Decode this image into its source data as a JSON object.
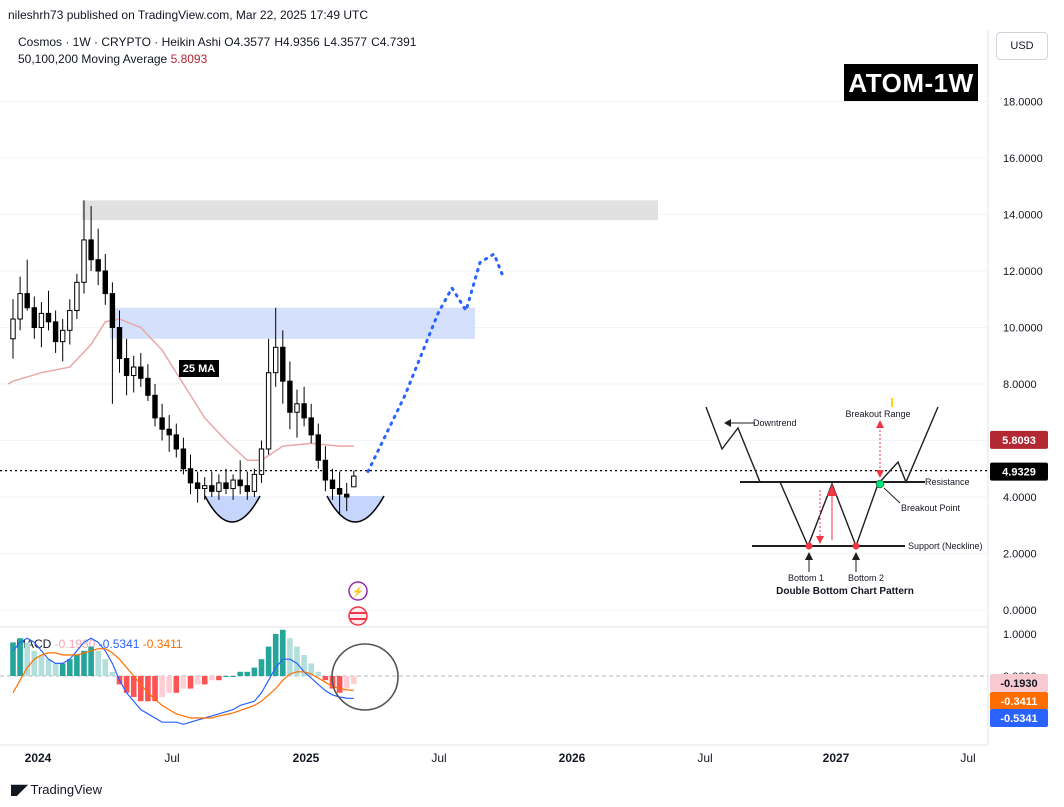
{
  "publisher": "nileshrh73 published on TradingView.com, Mar 22, 2025 17:49 UTC",
  "legend": {
    "symbol": "Cosmos · 1W · CRYPTO · Heikin Ashi",
    "open": "O4.3577",
    "high": "H4.9356",
    "low": "L4.3577",
    "close": "C4.7391",
    "ma_label": "50,100,200 Moving Average",
    "ma_value": "5.8093"
  },
  "currency_button": "USD",
  "badge": "ATOM-1W",
  "annotations": {
    "ma_label": "25 MA"
  },
  "price_axis": {
    "ticks": [
      "18.0000",
      "16.0000",
      "14.0000",
      "12.0000",
      "10.0000",
      "8.0000",
      "6.0000",
      "4.0000",
      "2.0000",
      "0.0000"
    ],
    "ma_tag": "5.8093",
    "price_tag": "4.9329",
    "ma_tag_color": "#b22833",
    "price_tag_color": "#000000"
  },
  "macd_axis": {
    "ticks": [
      "1.0000",
      "0.0000"
    ],
    "tags": [
      {
        "value": "-0.1930",
        "bg": "#f8c9d0",
        "fg": "#131722"
      },
      {
        "value": "-0.3411",
        "bg": "#ff6d00",
        "fg": "#ffffff"
      },
      {
        "value": "-0.5341",
        "bg": "#2962ff",
        "fg": "#ffffff"
      }
    ]
  },
  "macd_legend": {
    "title": "MACD",
    "hist": "-0.1930",
    "macd": "-0.5341",
    "signal": "-0.3411"
  },
  "time_axis": [
    "2024",
    "Jul",
    "2025",
    "Jul",
    "2026",
    "Jul",
    "2027",
    "Jul"
  ],
  "pattern": {
    "downtrend": "Downtrend",
    "breakout_range": "Breakout Range",
    "resistance": "Resistance",
    "breakout_point": "Breakout Point",
    "support": "Support (Neckline)",
    "bottom1": "Bottom 1",
    "bottom2": "Bottom 2",
    "title": "Double Bottom Chart Pattern"
  },
  "footer": {
    "brand": "TradingView"
  },
  "colors": {
    "bull": "#000000",
    "bear": "#000000",
    "ma": "#e8a8a8",
    "projection": "#2962ff",
    "resistance_zone": "#c5d5fb",
    "top_zone": "#d9d9d9",
    "macd_line": "#2962ff",
    "signal_line": "#ff6d00",
    "hist_pos_strong": "#26a69a",
    "hist_pos_weak": "#b2dfdb",
    "hist_neg_strong": "#ff5252",
    "hist_neg_weak": "#ffcdd2"
  },
  "chart_data": {
    "type": "candlestick",
    "symbol": "ATOM",
    "timeframe": "1W",
    "yaxis": {
      "range": [
        0,
        19
      ]
    },
    "candles": [
      {
        "o": 9.6,
        "h": 11.0,
        "l": 8.9,
        "c": 10.3
      },
      {
        "o": 10.3,
        "h": 11.8,
        "l": 9.9,
        "c": 11.2
      },
      {
        "o": 11.2,
        "h": 12.4,
        "l": 10.6,
        "c": 10.7
      },
      {
        "o": 10.7,
        "h": 11.1,
        "l": 9.6,
        "c": 10.0
      },
      {
        "o": 10.0,
        "h": 10.9,
        "l": 9.3,
        "c": 10.5
      },
      {
        "o": 10.5,
        "h": 11.3,
        "l": 9.9,
        "c": 10.2
      },
      {
        "o": 10.2,
        "h": 10.6,
        "l": 9.1,
        "c": 9.5
      },
      {
        "o": 9.5,
        "h": 10.3,
        "l": 8.8,
        "c": 9.9
      },
      {
        "o": 9.9,
        "h": 11.0,
        "l": 9.4,
        "c": 10.6
      },
      {
        "o": 10.6,
        "h": 11.9,
        "l": 10.3,
        "c": 11.6
      },
      {
        "o": 11.6,
        "h": 14.5,
        "l": 11.2,
        "c": 13.1
      },
      {
        "o": 13.1,
        "h": 14.3,
        "l": 12.0,
        "c": 12.4
      },
      {
        "o": 12.4,
        "h": 13.5,
        "l": 11.5,
        "c": 12.0
      },
      {
        "o": 12.0,
        "h": 12.6,
        "l": 10.8,
        "c": 11.2
      },
      {
        "o": 11.2,
        "h": 11.6,
        "l": 7.3,
        "c": 10.0
      },
      {
        "o": 10.0,
        "h": 10.6,
        "l": 8.4,
        "c": 8.9
      },
      {
        "o": 8.9,
        "h": 9.6,
        "l": 7.6,
        "c": 8.3
      },
      {
        "o": 8.3,
        "h": 9.0,
        "l": 7.7,
        "c": 8.6
      },
      {
        "o": 8.6,
        "h": 9.1,
        "l": 7.9,
        "c": 8.2
      },
      {
        "o": 8.2,
        "h": 8.7,
        "l": 7.4,
        "c": 7.6
      },
      {
        "o": 7.6,
        "h": 8.0,
        "l": 6.5,
        "c": 6.8
      },
      {
        "o": 6.8,
        "h": 7.3,
        "l": 6.0,
        "c": 6.4
      },
      {
        "o": 6.4,
        "h": 6.9,
        "l": 5.6,
        "c": 6.2
      },
      {
        "o": 6.2,
        "h": 6.6,
        "l": 5.4,
        "c": 5.7
      },
      {
        "o": 5.7,
        "h": 6.1,
        "l": 4.8,
        "c": 5.0
      },
      {
        "o": 5.0,
        "h": 5.5,
        "l": 4.1,
        "c": 4.5
      },
      {
        "o": 4.5,
        "h": 4.9,
        "l": 3.8,
        "c": 4.3
      },
      {
        "o": 4.3,
        "h": 4.7,
        "l": 3.9,
        "c": 4.4
      },
      {
        "o": 4.4,
        "h": 4.9,
        "l": 4.0,
        "c": 4.2
      },
      {
        "o": 4.2,
        "h": 4.8,
        "l": 3.9,
        "c": 4.5
      },
      {
        "o": 4.5,
        "h": 5.0,
        "l": 4.1,
        "c": 4.3
      },
      {
        "o": 4.3,
        "h": 4.8,
        "l": 3.9,
        "c": 4.6
      },
      {
        "o": 4.6,
        "h": 5.3,
        "l": 4.1,
        "c": 4.4
      },
      {
        "o": 4.4,
        "h": 4.9,
        "l": 3.9,
        "c": 4.2
      },
      {
        "o": 4.2,
        "h": 5.0,
        "l": 4.0,
        "c": 4.8
      },
      {
        "o": 4.8,
        "h": 6.0,
        "l": 4.5,
        "c": 5.7
      },
      {
        "o": 5.7,
        "h": 9.6,
        "l": 5.5,
        "c": 8.4
      },
      {
        "o": 8.4,
        "h": 10.7,
        "l": 7.9,
        "c": 9.3
      },
      {
        "o": 9.3,
        "h": 9.9,
        "l": 7.3,
        "c": 8.1
      },
      {
        "o": 8.1,
        "h": 8.8,
        "l": 6.4,
        "c": 7.0
      },
      {
        "o": 7.0,
        "h": 7.8,
        "l": 6.1,
        "c": 7.3
      },
      {
        "o": 7.3,
        "h": 7.9,
        "l": 6.5,
        "c": 6.8
      },
      {
        "o": 6.8,
        "h": 7.3,
        "l": 5.9,
        "c": 6.2
      },
      {
        "o": 6.2,
        "h": 6.6,
        "l": 5.0,
        "c": 5.3
      },
      {
        "o": 5.3,
        "h": 5.8,
        "l": 4.2,
        "c": 4.6
      },
      {
        "o": 4.6,
        "h": 5.0,
        "l": 3.9,
        "c": 4.3
      },
      {
        "o": 4.3,
        "h": 4.9,
        "l": 3.4,
        "c": 4.1
      },
      {
        "o": 4.1,
        "h": 4.5,
        "l": 3.5,
        "c": 4.0
      },
      {
        "o": 4.36,
        "h": 4.94,
        "l": 4.36,
        "c": 4.74
      }
    ],
    "moving_average": [
      {
        "i": 0,
        "v": 8.1
      },
      {
        "i": 4,
        "v": 8.4
      },
      {
        "i": 8,
        "v": 8.6
      },
      {
        "i": 11,
        "v": 9.4
      },
      {
        "i": 13,
        "v": 10.2
      },
      {
        "i": 15,
        "v": 10.3
      },
      {
        "i": 18,
        "v": 10.0
      },
      {
        "i": 21,
        "v": 9.2
      },
      {
        "i": 24,
        "v": 8.0
      },
      {
        "i": 27,
        "v": 6.8
      },
      {
        "i": 30,
        "v": 6.0
      },
      {
        "i": 33,
        "v": 5.3
      },
      {
        "i": 35,
        "v": 5.3
      },
      {
        "i": 38,
        "v": 5.8
      },
      {
        "i": 42,
        "v": 5.9
      },
      {
        "i": 46,
        "v": 5.8
      },
      {
        "i": 48,
        "v": 5.8
      }
    ],
    "zones": [
      {
        "label": "top",
        "y0": 13.8,
        "y1": 14.5
      },
      {
        "label": "resistance",
        "y0": 9.6,
        "y1": 10.7
      }
    ],
    "projection": [
      {
        "x": "2025-03",
        "y": 4.9
      },
      {
        "x": "2025-07",
        "y": 11.4
      },
      {
        "x": "2025-08",
        "y": 10.6
      },
      {
        "x": "2025-09",
        "y": 12.5
      },
      {
        "x": "2025-10",
        "y": 11.9
      }
    ],
    "current_price": 4.9329,
    "ma_value": 5.8093,
    "macd": {
      "hist_last": -0.193,
      "macd_last": -0.5341,
      "signal_last": -0.3411,
      "yrange": [
        -1.2,
        1.0
      ],
      "hist": [
        0.8,
        0.9,
        0.8,
        0.6,
        0.5,
        0.4,
        0.3,
        0.3,
        0.4,
        0.5,
        0.6,
        0.7,
        0.6,
        0.4,
        0.1,
        -0.2,
        -0.4,
        -0.5,
        -0.6,
        -0.6,
        -0.6,
        -0.5,
        -0.4,
        -0.4,
        -0.3,
        -0.3,
        -0.2,
        -0.2,
        -0.1,
        -0.1,
        0.0,
        0.0,
        0.1,
        0.1,
        0.2,
        0.4,
        0.7,
        1.0,
        1.1,
        0.9,
        0.7,
        0.5,
        0.3,
        0.1,
        -0.1,
        -0.3,
        -0.4,
        -0.3,
        -0.19
      ],
      "macd_line": [
        0.6,
        0.8,
        0.9,
        0.8,
        0.6,
        0.4,
        0.3,
        0.3,
        0.4,
        0.6,
        0.8,
        0.9,
        0.8,
        0.6,
        0.3,
        -0.1,
        -0.4,
        -0.6,
        -0.8,
        -0.9,
        -1.0,
        -1.1,
        -1.1,
        -1.1,
        -1.15,
        -1.1,
        -1.05,
        -1.0,
        -0.95,
        -0.9,
        -0.85,
        -0.8,
        -0.7,
        -0.65,
        -0.6,
        -0.4,
        -0.1,
        0.2,
        0.4,
        0.4,
        0.3,
        0.1,
        -0.05,
        -0.2,
        -0.35,
        -0.45,
        -0.5,
        -0.53,
        -0.5341
      ],
      "signal_line": [
        -0.4,
        -0.1,
        0.2,
        0.4,
        0.5,
        0.55,
        0.55,
        0.5,
        0.5,
        0.5,
        0.55,
        0.6,
        0.65,
        0.65,
        0.55,
        0.4,
        0.2,
        0.0,
        -0.2,
        -0.4,
        -0.55,
        -0.7,
        -0.8,
        -0.9,
        -0.95,
        -1.0,
        -1.0,
        -1.0,
        -1.0,
        -0.95,
        -0.92,
        -0.88,
        -0.82,
        -0.76,
        -0.7,
        -0.6,
        -0.45,
        -0.3,
        -0.1,
        0.05,
        0.1,
        0.1,
        0.05,
        -0.05,
        -0.15,
        -0.25,
        -0.3,
        -0.33,
        -0.3411
      ]
    }
  }
}
